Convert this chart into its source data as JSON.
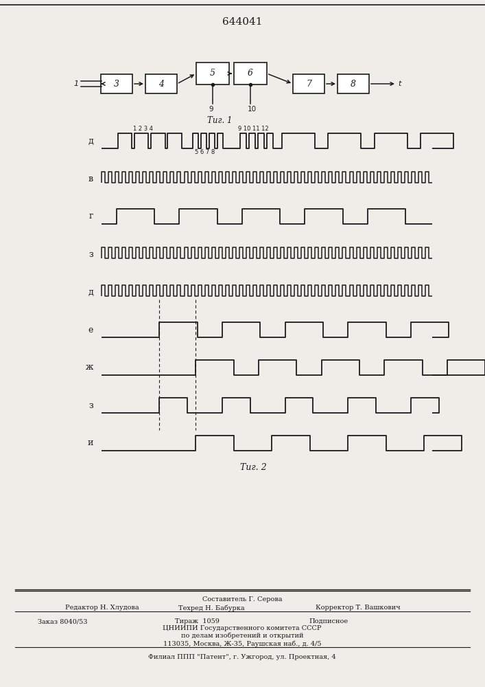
{
  "title": "644041",
  "background_color": "#f0ede8",
  "line_color": "#1a1a1a",
  "fig1_label": "Τиг. 1",
  "fig2_label": "Τиг. 2",
  "waveform_labels": [
    "д",
    "в",
    "г",
    "з",
    "д",
    "е",
    "ж",
    "з",
    "и"
  ],
  "footer_col1_row1": "Редактор Н. Хлудова",
  "footer_col2_row0": "Составитель Г. Серова",
  "footer_col2_row1": "Техред Н. Бабурка",
  "footer_col3_row1": "Корректор Т. Вашкович",
  "footer_zakaz": "Заказ 8040/53",
  "footer_tirazh": "Тираж  1059",
  "footer_podp": "Подписное",
  "footer_cniip1": "ЦНИИПИ Государственного комитета СССР",
  "footer_cniip2": "по делам изобретений и открытий",
  "footer_addr": "113035, Москва, Ж-35, Раушская наб., д. 4/5",
  "footer_filial": "Филиал ППП \"Патент\", г. Ужгород, ул. Проектная, 4"
}
